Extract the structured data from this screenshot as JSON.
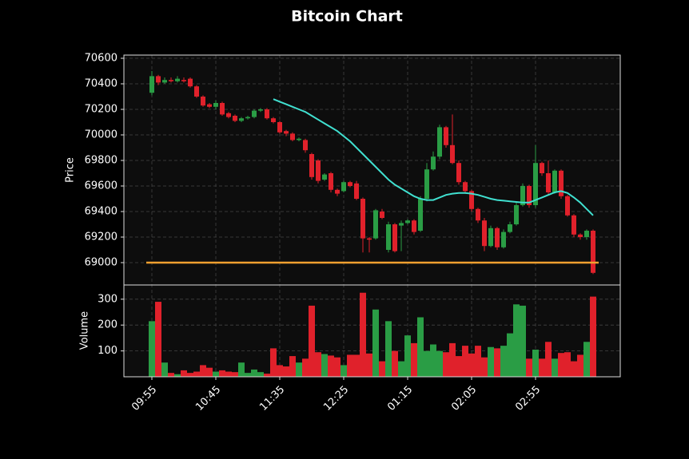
{
  "chart_data": {
    "type": "candlestick",
    "title": "Bitcoin Chart",
    "categories": [
      "09:55",
      null,
      null,
      null,
      null,
      null,
      null,
      null,
      null,
      null,
      "10:45",
      null,
      null,
      null,
      null,
      null,
      null,
      null,
      null,
      null,
      "11:35",
      null,
      null,
      null,
      null,
      null,
      null,
      null,
      null,
      null,
      "12:25",
      null,
      null,
      null,
      null,
      null,
      null,
      null,
      null,
      null,
      "01:15",
      null,
      null,
      null,
      null,
      null,
      null,
      null,
      null,
      null,
      "02:05",
      null,
      null,
      null,
      null,
      null,
      null,
      null,
      null,
      null,
      "02:55",
      null,
      null,
      null,
      null,
      null,
      null,
      null,
      null,
      null
    ],
    "open": [
      70330,
      70460,
      70410,
      70430,
      70420,
      70430,
      70440,
      70380,
      70300,
      70240,
      70220,
      70250,
      70170,
      70150,
      70110,
      70130,
      70140,
      70190,
      70200,
      70130,
      70100,
      70030,
      70010,
      69960,
      69960,
      69850,
      69800,
      69650,
      69700,
      69570,
      69560,
      69630,
      69620,
      69500,
      69190,
      69190,
      69400,
      69100,
      69300,
      69290,
      69310,
      69330,
      69250,
      69500,
      69730,
      69830,
      70060,
      69920,
      69780,
      69630,
      69560,
      69420,
      69330,
      69130,
      69270,
      69120,
      69240,
      69300,
      69450,
      69600,
      69450,
      69780,
      69700,
      69550,
      69720,
      69520,
      69370,
      69220,
      69200,
      69250
    ],
    "high": [
      70500,
      70470,
      70450,
      70450,
      70460,
      70450,
      70450,
      70390,
      70310,
      70250,
      70270,
      70260,
      70180,
      70160,
      70140,
      70150,
      70200,
      70210,
      70210,
      70140,
      70110,
      70040,
      70020,
      69980,
      69970,
      69860,
      69810,
      69700,
      69710,
      69580,
      69640,
      69640,
      69640,
      69510,
      69200,
      69420,
      69420,
      69320,
      69310,
      69330,
      69340,
      69340,
      69520,
      69780,
      69870,
      70080,
      70070,
      70160,
      69800,
      69640,
      69570,
      69430,
      69350,
      69290,
      69280,
      69260,
      69320,
      69470,
      69620,
      69610,
      69920,
      69790,
      69800,
      69730,
      69730,
      69530,
      69380,
      69230,
      69260,
      69260
    ],
    "low": [
      70310,
      70390,
      70400,
      70410,
      70410,
      70410,
      70370,
      70290,
      70220,
      70210,
      70200,
      70150,
      70130,
      70100,
      70100,
      70120,
      70130,
      70180,
      70120,
      70090,
      70010,
      69990,
      69950,
      69950,
      69860,
      69650,
      69620,
      69640,
      69550,
      69520,
      69550,
      69590,
      69490,
      69080,
      69080,
      69180,
      69340,
      69080,
      69080,
      69090,
      69300,
      69220,
      69240,
      69480,
      69720,
      69810,
      69900,
      69770,
      69610,
      69540,
      69400,
      69310,
      69090,
      69120,
      69100,
      69110,
      69230,
      69290,
      69440,
      69430,
      69430,
      69680,
      69530,
      69540,
      69500,
      69360,
      69200,
      69180,
      69180,
      68910
    ],
    "close": [
      70460,
      70410,
      70430,
      70420,
      70440,
      70420,
      70380,
      70300,
      70230,
      70220,
      70250,
      70160,
      70140,
      70110,
      70130,
      70140,
      70190,
      70200,
      70130,
      70100,
      70020,
      70010,
      69960,
      69970,
      69880,
      69670,
      69640,
      69690,
      69570,
      69540,
      69630,
      69600,
      69500,
      69190,
      69180,
      69410,
      69350,
      69300,
      69090,
      69310,
      69330,
      69240,
      69500,
      69730,
      69830,
      70060,
      69920,
      69780,
      69630,
      69560,
      69420,
      69330,
      69130,
      69270,
      69120,
      69240,
      69300,
      69450,
      69600,
      69450,
      69780,
      69700,
      69550,
      69720,
      69520,
      69370,
      69220,
      69200,
      69250,
      68920
    ],
    "volume": [
      215,
      290,
      55,
      15,
      10,
      25,
      15,
      20,
      45,
      35,
      20,
      25,
      20,
      18,
      55,
      15,
      28,
      18,
      12,
      110,
      45,
      40,
      80,
      55,
      70,
      275,
      95,
      88,
      82,
      75,
      45,
      85,
      85,
      325,
      90,
      260,
      60,
      215,
      100,
      60,
      160,
      130,
      230,
      100,
      125,
      100,
      95,
      130,
      80,
      120,
      90,
      120,
      75,
      115,
      110,
      120,
      168,
      280,
      275,
      70,
      105,
      70,
      135,
      70,
      92,
      95,
      60,
      85,
      135,
      310
    ],
    "ma": {
      "color": "#40e0d0",
      "values": [
        null,
        null,
        null,
        null,
        null,
        null,
        null,
        null,
        null,
        null,
        null,
        null,
        null,
        null,
        null,
        null,
        null,
        null,
        null,
        70280,
        70260,
        70240,
        70220,
        70200,
        70180,
        70150,
        70120,
        70090,
        70060,
        70030,
        69990,
        69950,
        69900,
        69850,
        69800,
        69750,
        69700,
        69650,
        69610,
        69580,
        69550,
        69520,
        69500,
        69490,
        69490,
        69510,
        69530,
        69540,
        69545,
        69545,
        69540,
        69530,
        69515,
        69500,
        69490,
        69485,
        69480,
        69475,
        69470,
        69470,
        69490,
        69510,
        69530,
        69550,
        69560,
        69545,
        69510,
        69470,
        69420,
        69370
      ]
    },
    "hline": {
      "value": 69000,
      "color": "#f0a030"
    },
    "up_color": "#2a9d45",
    "down_color": "#e0212b",
    "ylabel": "Price",
    "ylim": [
      68825,
      70625
    ],
    "yticks": [
      69000,
      69200,
      69400,
      69600,
      69800,
      70000,
      70200,
      70400,
      70600
    ],
    "volume_ylabel": "Volume",
    "volume_ylim": [
      0,
      355
    ],
    "volume_yticks": [
      100,
      200,
      300
    ],
    "grid": true
  }
}
